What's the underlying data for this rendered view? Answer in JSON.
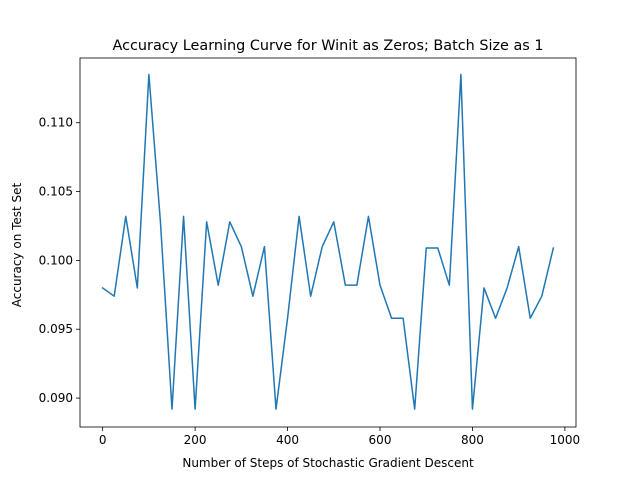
{
  "chart_data": {
    "type": "line",
    "title": "Accuracy Learning Curve for Winit as Zeros; Batch Size as 1",
    "xlabel": "Number of Steps of Stochastic Gradient Descent",
    "ylabel": "Accuracy on Test Set",
    "xlim": [
      -49,
      1024
    ],
    "ylim": [
      0.0879,
      0.1147
    ],
    "xticks": [
      0,
      200,
      400,
      600,
      800,
      1000
    ],
    "xtick_labels": [
      "0",
      "200",
      "400",
      "600",
      "800",
      "1000"
    ],
    "yticks": [
      0.09,
      0.095,
      0.1,
      0.105,
      0.11
    ],
    "ytick_labels": [
      "0.090",
      "0.095",
      "0.100",
      "0.105",
      "0.110"
    ],
    "grid": false,
    "series": [
      {
        "color": "#1f77b4",
        "x": [
          0,
          25,
          50,
          75,
          100,
          125,
          150,
          175,
          200,
          225,
          250,
          275,
          300,
          325,
          350,
          375,
          400,
          425,
          450,
          475,
          500,
          525,
          550,
          575,
          600,
          625,
          650,
          675,
          700,
          725,
          750,
          775,
          800,
          825,
          850,
          875,
          900,
          925,
          950,
          975
        ],
        "y": [
          0.098,
          0.0974,
          0.1032,
          0.098,
          0.1135,
          0.1028,
          0.0892,
          0.1032,
          0.0892,
          0.1028,
          0.0982,
          0.1028,
          0.101,
          0.0974,
          0.101,
          0.0892,
          0.0958,
          0.1032,
          0.0974,
          0.101,
          0.1028,
          0.0982,
          0.0982,
          0.1032,
          0.0982,
          0.0958,
          0.0958,
          0.0892,
          0.1009,
          0.1009,
          0.0982,
          0.1135,
          0.0892,
          0.098,
          0.0958,
          0.098,
          0.101,
          0.0958,
          0.0974,
          0.1009
        ]
      }
    ]
  }
}
